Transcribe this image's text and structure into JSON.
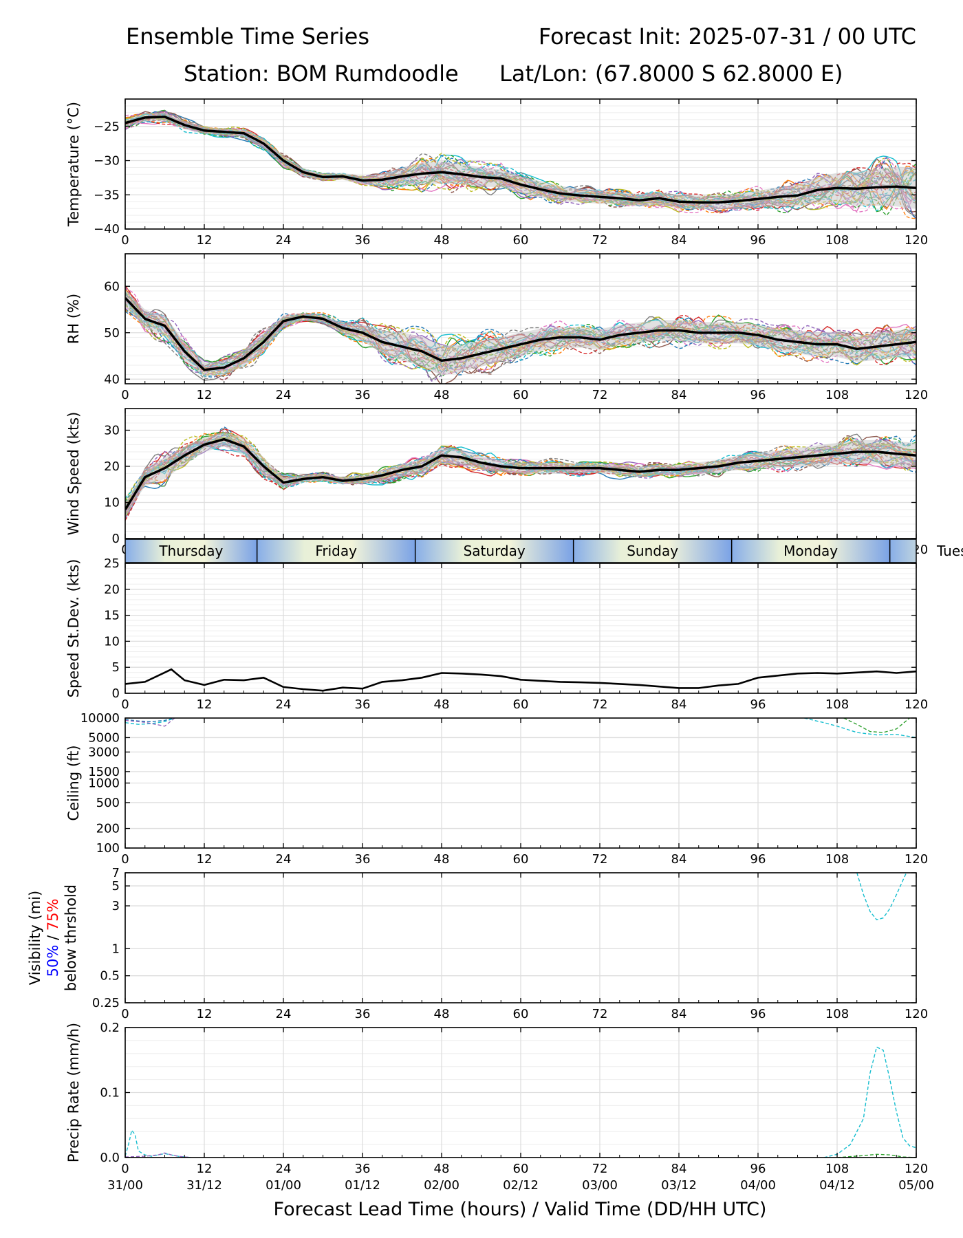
{
  "header": {
    "title_left": "Ensemble Time Series",
    "title_right": "Forecast Init: 2025-07-31 / 00 UTC",
    "station": "Station: BOM Rumdoodle",
    "latlon": "Lat/Lon: (67.8000 S 62.8000 E)"
  },
  "xaxis": {
    "label": "Forecast Lead Time (hours) / Valid Time (DD/HH UTC)",
    "ticks": [
      0,
      12,
      24,
      36,
      48,
      60,
      72,
      84,
      96,
      108,
      120
    ],
    "valid_times": [
      "31/00",
      "31/12",
      "01/00",
      "01/12",
      "02/00",
      "02/12",
      "03/00",
      "03/12",
      "04/00",
      "04/12",
      "05/00"
    ]
  },
  "day_band": {
    "days": [
      {
        "label": "Thursday",
        "start": 0,
        "end": 20
      },
      {
        "label": "Friday",
        "start": 20,
        "end": 44
      },
      {
        "label": "Saturday",
        "start": 44,
        "end": 68
      },
      {
        "label": "Sunday",
        "start": 68,
        "end": 92
      },
      {
        "label": "Monday",
        "start": 92,
        "end": 116
      },
      {
        "label": "Tues",
        "start": 116,
        "end": 140
      }
    ]
  },
  "colors": {
    "mean": "#000000",
    "spread": "#c8c8c8",
    "members": [
      "#1f77b4",
      "#ff7f0e",
      "#2ca02c",
      "#d62728",
      "#9467bd",
      "#8c564b",
      "#e377c2",
      "#7f7f7f",
      "#bcbd22",
      "#17becf"
    ],
    "vis_50": "#0000ff",
    "vis_75": "#ff0000"
  },
  "chart_data": [
    {
      "type": "line",
      "name": "temperature",
      "ylabel": "Temperature (°C)",
      "ylim": [
        -40,
        -21
      ],
      "yticks": [
        -40,
        -35,
        -30,
        -25
      ],
      "grid": true,
      "x": [
        0,
        3,
        6,
        9,
        12,
        15,
        18,
        21,
        24,
        27,
        30,
        33,
        36,
        39,
        42,
        45,
        48,
        51,
        54,
        57,
        60,
        63,
        66,
        69,
        72,
        75,
        78,
        81,
        84,
        87,
        90,
        93,
        96,
        99,
        102,
        105,
        108,
        111,
        114,
        117,
        120
      ],
      "mean": [
        -24.5,
        -23.7,
        -23.6,
        -24.8,
        -25.6,
        -25.8,
        -26.0,
        -27.5,
        -30.0,
        -31.7,
        -32.4,
        -32.3,
        -32.9,
        -32.8,
        -32.3,
        -31.9,
        -31.7,
        -32.0,
        -32.4,
        -32.6,
        -33.5,
        -34.2,
        -34.8,
        -35.1,
        -35.3,
        -35.5,
        -35.8,
        -35.5,
        -36.0,
        -36.1,
        -36.1,
        -35.9,
        -35.6,
        -35.3,
        -35.1,
        -34.3,
        -34.0,
        -34.1,
        -33.9,
        -33.8,
        -34.0
      ],
      "spread_halfwidth": [
        0.5,
        0.6,
        0.6,
        0.6,
        0.5,
        0.5,
        0.6,
        0.7,
        0.7,
        0.6,
        0.5,
        0.5,
        0.6,
        0.9,
        1.3,
        1.6,
        1.6,
        1.5,
        1.4,
        1.3,
        1.2,
        1.2,
        1.1,
        1.0,
        1.0,
        0.9,
        0.9,
        0.9,
        1.0,
        1.0,
        1.0,
        1.1,
        1.2,
        1.4,
        1.6,
        1.9,
        2.2,
        2.5,
        2.7,
        2.9,
        3.0
      ],
      "member_spread": [
        1.0,
        1.0,
        1.0,
        1.0,
        0.8,
        0.8,
        1.0,
        1.0,
        1.0,
        0.8,
        0.6,
        0.6,
        0.8,
        1.5,
        2.2,
        2.8,
        2.8,
        2.6,
        2.4,
        2.2,
        2.0,
        2.0,
        1.8,
        1.6,
        1.6,
        1.4,
        1.4,
        1.4,
        1.6,
        1.6,
        1.6,
        1.8,
        2.0,
        2.3,
        2.7,
        3.1,
        3.6,
        4.0,
        4.3,
        4.6,
        4.8
      ]
    },
    {
      "type": "line",
      "name": "relative_humidity",
      "ylabel": "RH (%)",
      "ylim": [
        39,
        67
      ],
      "yticks": [
        40,
        50,
        60
      ],
      "grid": true,
      "x": [
        0,
        3,
        6,
        9,
        12,
        15,
        18,
        21,
        24,
        27,
        30,
        33,
        36,
        39,
        42,
        45,
        48,
        51,
        54,
        57,
        60,
        63,
        66,
        69,
        72,
        75,
        78,
        81,
        84,
        87,
        90,
        93,
        96,
        99,
        102,
        105,
        108,
        111,
        114,
        117,
        120
      ],
      "mean": [
        57.5,
        53.0,
        51.5,
        46.0,
        42.0,
        42.5,
        44.5,
        48.0,
        52.5,
        53.5,
        53.0,
        51.0,
        50.0,
        48.0,
        47.0,
        46.0,
        44.0,
        44.5,
        45.5,
        46.5,
        47.5,
        48.5,
        49.0,
        49.0,
        48.5,
        49.5,
        50.0,
        50.5,
        50.5,
        50.0,
        50.0,
        50.0,
        49.5,
        48.5,
        48.0,
        47.5,
        47.5,
        46.5,
        47.0,
        47.5,
        48.0
      ],
      "spread_halfwidth": [
        1.8,
        2.0,
        2.2,
        2.0,
        1.5,
        1.5,
        1.8,
        2.0,
        1.2,
        0.8,
        0.8,
        1.2,
        1.8,
        2.5,
        3.0,
        3.2,
        3.2,
        3.0,
        2.8,
        2.6,
        2.5,
        2.4,
        2.3,
        2.2,
        2.2,
        2.2,
        2.2,
        2.2,
        2.3,
        2.3,
        2.3,
        2.3,
        2.3,
        2.4,
        2.5,
        2.6,
        2.7,
        2.8,
        2.9,
        3.0,
        3.0
      ],
      "member_spread": [
        3.0,
        3.5,
        4.0,
        3.5,
        2.5,
        2.5,
        3.0,
        3.0,
        1.8,
        1.2,
        1.2,
        2.0,
        3.0,
        4.2,
        5.0,
        5.5,
        5.5,
        5.0,
        4.6,
        4.3,
        4.0,
        3.8,
        3.6,
        3.5,
        3.5,
        3.5,
        3.5,
        3.5,
        3.6,
        3.6,
        3.6,
        3.6,
        3.6,
        3.7,
        3.8,
        4.0,
        4.2,
        4.4,
        4.6,
        4.8,
        5.0
      ]
    },
    {
      "type": "line",
      "name": "wind_speed",
      "ylabel": "Wind Speed (kts)",
      "ylim": [
        0,
        36
      ],
      "yticks": [
        0,
        10,
        20,
        30
      ],
      "grid": true,
      "x": [
        0,
        3,
        6,
        9,
        12,
        15,
        18,
        21,
        24,
        27,
        30,
        33,
        36,
        39,
        42,
        45,
        48,
        51,
        54,
        57,
        60,
        63,
        66,
        69,
        72,
        75,
        78,
        81,
        84,
        87,
        90,
        93,
        96,
        99,
        102,
        105,
        108,
        111,
        114,
        117,
        120
      ],
      "mean": [
        8.0,
        17.0,
        19.5,
        23.0,
        26.0,
        27.5,
        25.5,
        20.0,
        15.5,
        16.5,
        17.0,
        16.0,
        16.5,
        17.5,
        19.0,
        20.0,
        23.0,
        22.5,
        21.0,
        20.0,
        19.5,
        19.5,
        19.5,
        19.5,
        19.5,
        19.0,
        18.5,
        19.0,
        19.0,
        19.5,
        20.0,
        21.0,
        21.5,
        22.0,
        22.5,
        23.0,
        23.5,
        24.0,
        24.0,
        23.5,
        23.0
      ],
      "spread_halfwidth": [
        2.0,
        2.5,
        3.0,
        2.5,
        2.0,
        2.0,
        2.5,
        2.5,
        1.5,
        1.0,
        1.0,
        1.0,
        1.2,
        1.5,
        1.8,
        2.0,
        2.2,
        2.0,
        1.8,
        1.6,
        1.5,
        1.5,
        1.5,
        1.4,
        1.4,
        1.4,
        1.4,
        1.5,
        1.5,
        1.6,
        1.8,
        2.0,
        2.2,
        2.4,
        2.6,
        2.8,
        3.0,
        3.2,
        3.3,
        3.4,
        3.5
      ],
      "member_spread": [
        3.0,
        4.0,
        6.0,
        4.0,
        3.0,
        3.0,
        3.5,
        4.0,
        2.5,
        1.5,
        1.5,
        1.5,
        2.0,
        2.5,
        3.0,
        3.5,
        3.5,
        3.2,
        3.0,
        2.8,
        2.6,
        2.5,
        2.4,
        2.3,
        2.3,
        2.3,
        2.3,
        2.4,
        2.5,
        2.6,
        2.8,
        3.0,
        3.3,
        3.6,
        3.9,
        4.2,
        4.5,
        4.8,
        5.0,
        5.2,
        5.5
      ]
    },
    {
      "type": "line",
      "name": "speed_stdev",
      "ylabel": "Speed St.Dev. (kts)",
      "ylim": [
        0,
        25
      ],
      "yticks": [
        0,
        5,
        10,
        15,
        20,
        25
      ],
      "grid": true,
      "x": [
        0,
        3,
        6,
        7,
        9,
        12,
        15,
        18,
        21,
        24,
        27,
        30,
        33,
        36,
        39,
        42,
        45,
        48,
        51,
        54,
        57,
        60,
        63,
        66,
        69,
        72,
        75,
        78,
        81,
        84,
        87,
        90,
        93,
        96,
        99,
        102,
        105,
        108,
        111,
        114,
        117,
        120
      ],
      "values": [
        1.8,
        2.2,
        4.0,
        4.6,
        2.5,
        1.6,
        2.6,
        2.5,
        3.0,
        1.2,
        0.8,
        0.5,
        1.1,
        0.9,
        2.2,
        2.5,
        3.0,
        3.9,
        3.8,
        3.6,
        3.3,
        2.6,
        2.4,
        2.2,
        2.1,
        2.0,
        1.8,
        1.6,
        1.3,
        1.0,
        1.0,
        1.5,
        1.8,
        3.0,
        3.4,
        3.8,
        3.9,
        3.8,
        4.0,
        4.2,
        3.9,
        4.2
      ]
    },
    {
      "type": "line",
      "name": "ceiling",
      "ylabel": "Ceiling (ft)",
      "yscale": "log",
      "ylim": [
        100,
        10000
      ],
      "yticks": [
        100,
        200,
        500,
        1000,
        1500,
        3000,
        5000,
        10000
      ],
      "grid": true,
      "segments": [
        {
          "color_index": 0,
          "x": [
            0,
            2,
            4,
            6,
            7.5
          ],
          "y": [
            9500,
            9000,
            8800,
            9200,
            10000
          ]
        },
        {
          "color_index": 9,
          "x": [
            0,
            2,
            4,
            6,
            7.5
          ],
          "y": [
            8500,
            8000,
            8200,
            8800,
            10000
          ]
        },
        {
          "color_index": 4,
          "x": [
            0,
            3,
            6,
            7.5
          ],
          "y": [
            9200,
            8600,
            7500,
            10000
          ]
        },
        {
          "color_index": 9,
          "x": [
            103,
            106,
            108,
            111,
            114,
            117,
            120
          ],
          "y": [
            10000,
            8500,
            7500,
            6000,
            5500,
            5600,
            5000
          ]
        },
        {
          "color_index": 2,
          "x": [
            109,
            111,
            113,
            115,
            117,
            119
          ],
          "y": [
            10000,
            8000,
            6200,
            6000,
            6800,
            10000
          ]
        }
      ]
    },
    {
      "type": "line",
      "name": "visibility",
      "ylabel": "Visibility (mi)",
      "ylabel_50": "50%",
      "ylabel_sep": " / ",
      "ylabel_75": "75%",
      "ylabel2": "below thrshold",
      "yscale": "log",
      "ylim": [
        0.25,
        7
      ],
      "yticks": [
        0.25,
        0.5,
        1,
        3,
        5,
        7
      ],
      "grid": true,
      "segments": [
        {
          "color_index": 9,
          "x": [
            111,
            112,
            113,
            114,
            115,
            116,
            117,
            118.5
          ],
          "y": [
            7.0,
            4.0,
            2.6,
            2.1,
            2.2,
            2.8,
            4.0,
            7.0
          ]
        }
      ]
    },
    {
      "type": "line",
      "name": "precip_rate",
      "ylabel": "Precip Rate (mm/h)",
      "ylim": [
        0,
        0.2
      ],
      "yticks": [
        0.0,
        0.1,
        0.2
      ],
      "grid": true,
      "segments": [
        {
          "color_index": 9,
          "x": [
            0,
            0.5,
            1,
            1.5,
            2,
            3,
            4,
            6,
            8,
            10
          ],
          "y": [
            0.002,
            0.02,
            0.042,
            0.035,
            0.01,
            0.004,
            0.002,
            0.006,
            0.002,
            0.0
          ]
        },
        {
          "color_index": 4,
          "x": [
            0,
            3,
            5,
            6,
            7,
            8,
            10
          ],
          "y": [
            0.001,
            0.002,
            0.004,
            0.007,
            0.004,
            0.002,
            0.0
          ]
        },
        {
          "color_index": 9,
          "x": [
            106,
            108,
            110,
            112,
            113,
            114,
            115,
            116,
            117,
            118,
            119,
            120
          ],
          "y": [
            0.0,
            0.005,
            0.02,
            0.06,
            0.13,
            0.17,
            0.165,
            0.12,
            0.07,
            0.03,
            0.018,
            0.015
          ]
        },
        {
          "color_index": 2,
          "x": [
            108,
            112,
            114,
            116,
            118,
            120
          ],
          "y": [
            0.0,
            0.003,
            0.005,
            0.004,
            0.001,
            0.0
          ]
        }
      ]
    }
  ]
}
